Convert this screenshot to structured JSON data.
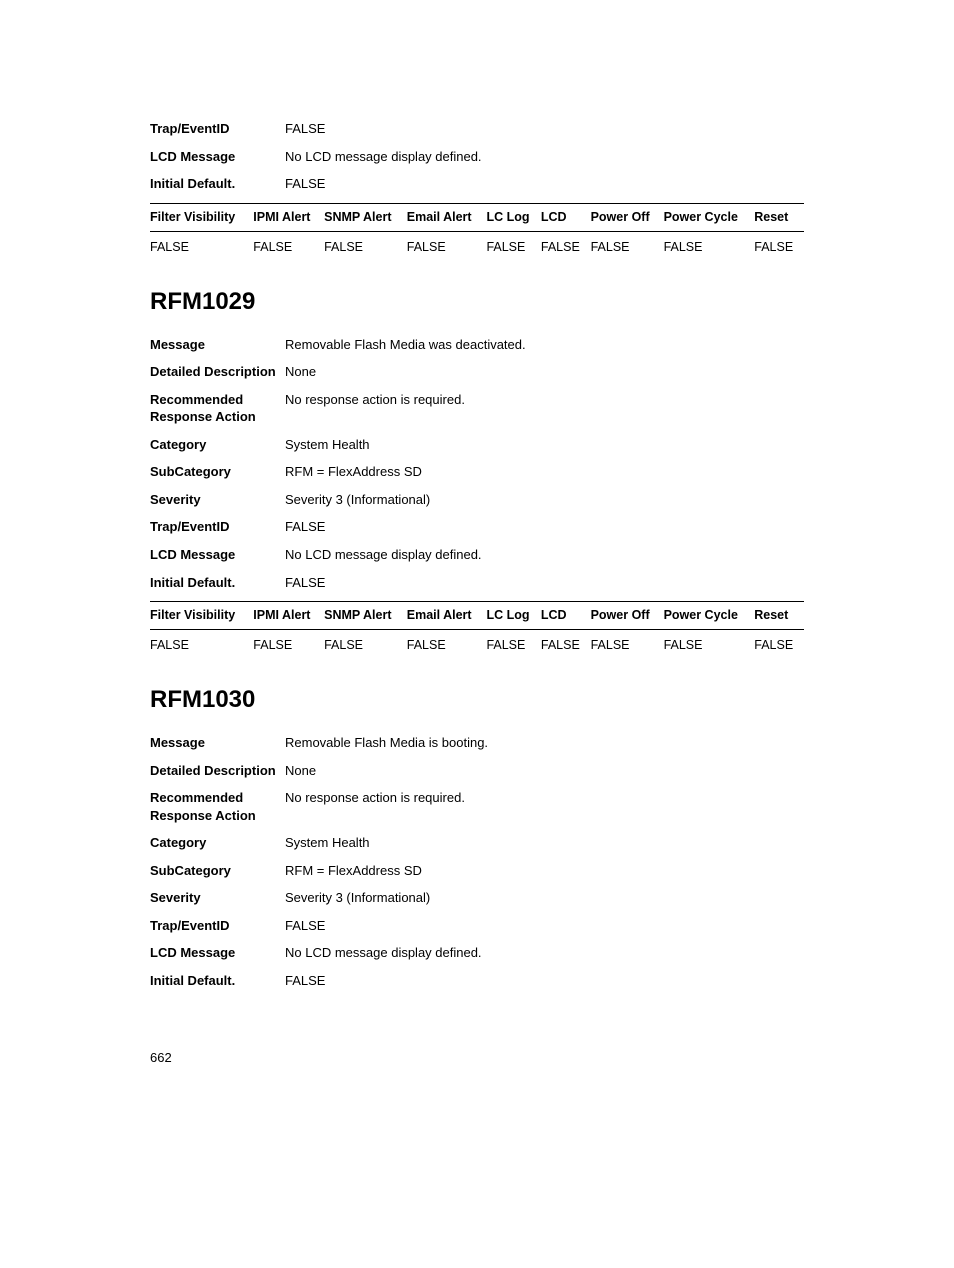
{
  "top_fragment": {
    "rows": [
      {
        "label": "Trap/EventID",
        "value": "FALSE"
      },
      {
        "label": "LCD Message",
        "value": "No LCD message display defined."
      },
      {
        "label": "Initial Default.",
        "value": "FALSE"
      }
    ],
    "table": {
      "headers": [
        "Filter Visibility",
        "IPMI Alert",
        "SNMP Alert",
        "Email Alert",
        "LC Log",
        "LCD",
        "Power Off",
        "Power Cycle",
        "Reset"
      ],
      "row": [
        "FALSE",
        "FALSE",
        "FALSE",
        "FALSE",
        "FALSE",
        "FALSE",
        "FALSE",
        "FALSE",
        "FALSE"
      ]
    }
  },
  "sections": [
    {
      "title": "RFM1029",
      "rows": [
        {
          "label": "Message",
          "value": "Removable Flash Media was deactivated."
        },
        {
          "label": "Detailed Description",
          "value": "None"
        },
        {
          "label": "Recommended Response Action",
          "value": "No response action is required."
        },
        {
          "label": "Category",
          "value": "System Health"
        },
        {
          "label": "SubCategory",
          "value": "RFM = FlexAddress SD"
        },
        {
          "label": "Severity",
          "value": "Severity 3 (Informational)"
        },
        {
          "label": "Trap/EventID",
          "value": "FALSE"
        },
        {
          "label": "LCD Message",
          "value": "No LCD message display defined."
        },
        {
          "label": "Initial Default.",
          "value": "FALSE"
        }
      ],
      "table": {
        "headers": [
          "Filter Visibility",
          "IPMI Alert",
          "SNMP Alert",
          "Email Alert",
          "LC Log",
          "LCD",
          "Power Off",
          "Power Cycle",
          "Reset"
        ],
        "row": [
          "FALSE",
          "FALSE",
          "FALSE",
          "FALSE",
          "FALSE",
          "FALSE",
          "FALSE",
          "FALSE",
          "FALSE"
        ]
      }
    },
    {
      "title": "RFM1030",
      "rows": [
        {
          "label": "Message",
          "value": "Removable Flash Media is booting."
        },
        {
          "label": "Detailed Description",
          "value": "None"
        },
        {
          "label": "Recommended Response Action",
          "value": "No response action is required."
        },
        {
          "label": "Category",
          "value": "System Health"
        },
        {
          "label": "SubCategory",
          "value": "RFM = FlexAddress SD"
        },
        {
          "label": "Severity",
          "value": "Severity 3 (Informational)"
        },
        {
          "label": "Trap/EventID",
          "value": "FALSE"
        },
        {
          "label": "LCD Message",
          "value": "No LCD message display defined."
        },
        {
          "label": "Initial Default.",
          "value": "FALSE"
        }
      ]
    }
  ],
  "page_number": "662"
}
